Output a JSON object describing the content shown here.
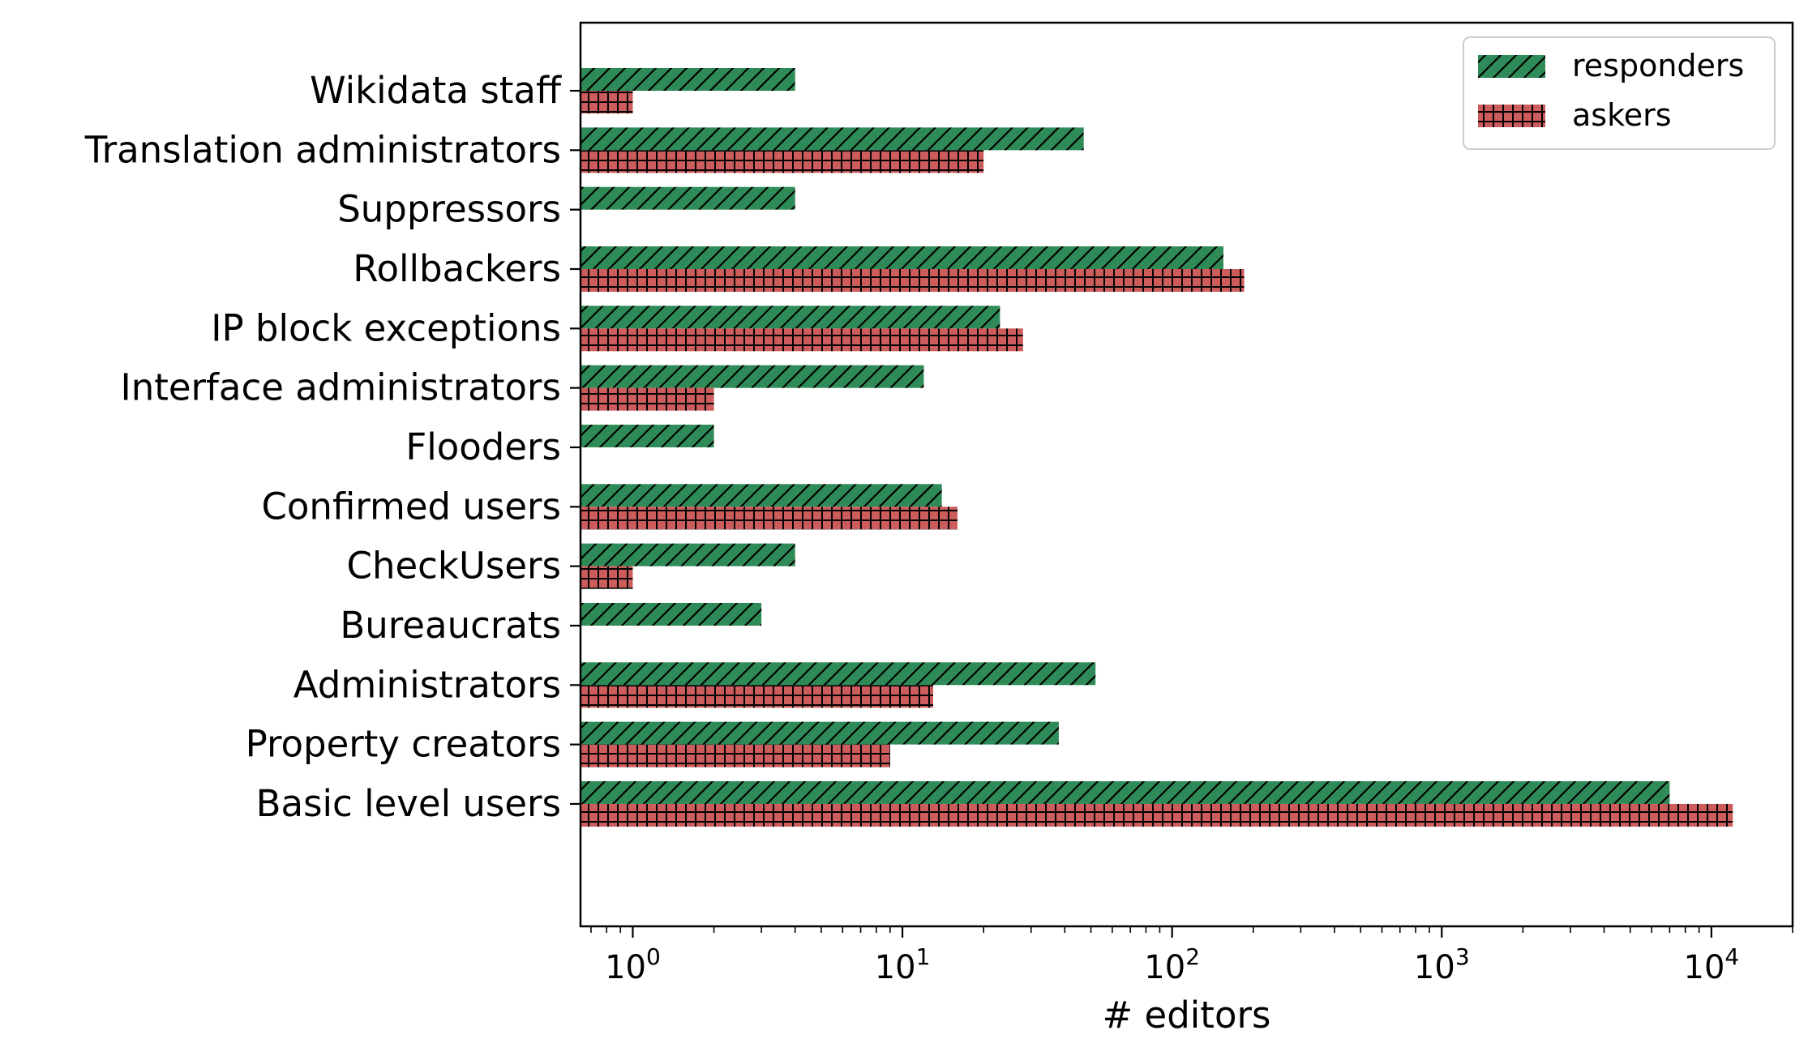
{
  "chart_data": {
    "type": "bar",
    "orientation": "horizontal",
    "scale": "log",
    "title": "",
    "xlabel": "# editors",
    "ylabel": "",
    "xlim": [
      0.64,
      20000
    ],
    "xticks": [
      {
        "value": 1,
        "base": "10",
        "exp": "0"
      },
      {
        "value": 10,
        "base": "10",
        "exp": "1"
      },
      {
        "value": 100,
        "base": "10",
        "exp": "2"
      },
      {
        "value": 1000,
        "base": "10",
        "exp": "3"
      },
      {
        "value": 10000,
        "base": "10",
        "exp": "4"
      }
    ],
    "categories": [
      "Wikidata staff",
      "Translation administrators",
      "Suppressors",
      "Rollbackers",
      "IP block exceptions",
      "Interface administrators",
      "Flooders",
      "Confirmed users",
      "CheckUsers",
      "Bureaucrats",
      "Administrators",
      "Property creators",
      "Basic level users"
    ],
    "series": [
      {
        "name": "responders",
        "color": "#2e8b57",
        "hatch": "diagonal",
        "values": [
          4,
          47,
          4,
          155,
          23,
          12,
          2,
          14,
          4,
          3,
          52,
          38,
          7000
        ]
      },
      {
        "name": "askers",
        "color": "#cd5c5c",
        "hatch": "grid",
        "values": [
          1,
          20,
          null,
          185,
          28,
          2,
          null,
          16,
          1,
          null,
          13,
          9,
          12000
        ]
      }
    ],
    "legend_position": "top-right",
    "grid": false
  }
}
